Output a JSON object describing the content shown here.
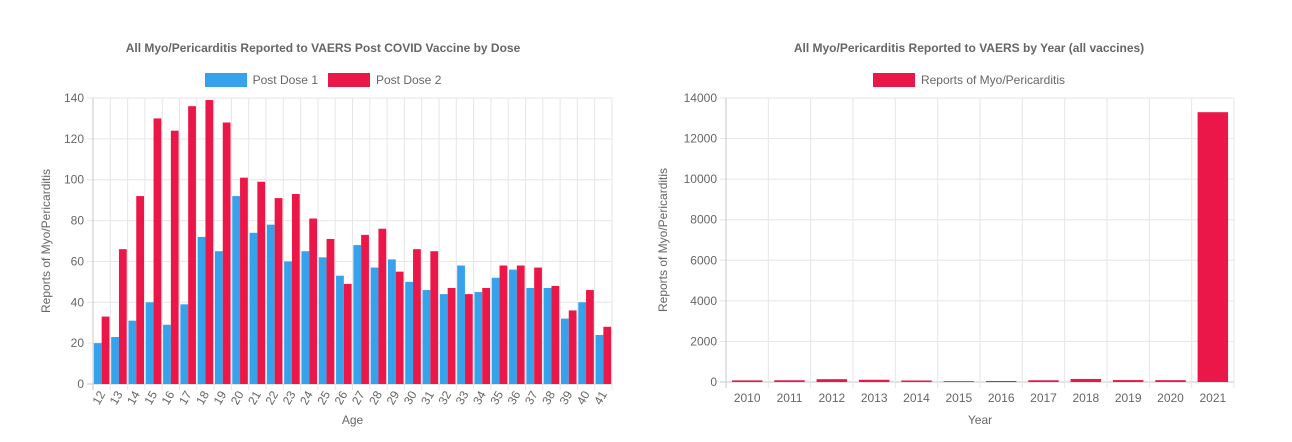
{
  "chart_data": [
    {
      "type": "bar",
      "title": "All Myo/Pericarditis Reported to VAERS Post COVID Vaccine by Dose",
      "xlabel": "Age",
      "ylabel": "Reports of Myo/Pericarditis",
      "ylim": [
        0,
        140
      ],
      "yticks": [
        0,
        20,
        40,
        60,
        80,
        100,
        120,
        140
      ],
      "categories": [
        "12",
        "13",
        "14",
        "15",
        "16",
        "17",
        "18",
        "19",
        "20",
        "21",
        "22",
        "23",
        "24",
        "25",
        "26",
        "27",
        "28",
        "29",
        "30",
        "31",
        "32",
        "33",
        "34",
        "35",
        "36",
        "37",
        "38",
        "39",
        "40",
        "41"
      ],
      "series": [
        {
          "name": "Post Dose 1",
          "color": "#36a2eb",
          "values": [
            20,
            23,
            31,
            40,
            29,
            39,
            72,
            65,
            92,
            74,
            78,
            60,
            65,
            62,
            53,
            68,
            57,
            61,
            50,
            46,
            44,
            58,
            45,
            52,
            56,
            47,
            47,
            32,
            40,
            24
          ]
        },
        {
          "name": "Post Dose 2",
          "color": "#ea1748",
          "values": [
            33,
            66,
            92,
            130,
            124,
            136,
            139,
            128,
            101,
            99,
            91,
            93,
            81,
            71,
            49,
            73,
            76,
            55,
            66,
            65,
            47,
            44,
            47,
            58,
            58,
            57,
            48,
            36,
            46,
            28
          ]
        }
      ],
      "legend_position": "top",
      "grid": true
    },
    {
      "type": "bar",
      "title": "All Myo/Pericarditis Reported to VAERS by Year (all vaccines)",
      "xlabel": "Year",
      "ylabel": "Reports of Myo/Pericarditis",
      "ylim": [
        0,
        14000
      ],
      "yticks": [
        0,
        2000,
        4000,
        6000,
        8000,
        10000,
        12000,
        14000
      ],
      "categories": [
        "2010",
        "2011",
        "2012",
        "2013",
        "2014",
        "2015",
        "2016",
        "2017",
        "2018",
        "2019",
        "2020",
        "2021"
      ],
      "series": [
        {
          "name": "Reports of Myo/Pericarditis",
          "color": "#ea1748",
          "values": [
            80,
            85,
            140,
            110,
            75,
            40,
            50,
            85,
            150,
            95,
            90,
            13300
          ]
        }
      ],
      "legend_position": "top",
      "grid": true
    }
  ]
}
